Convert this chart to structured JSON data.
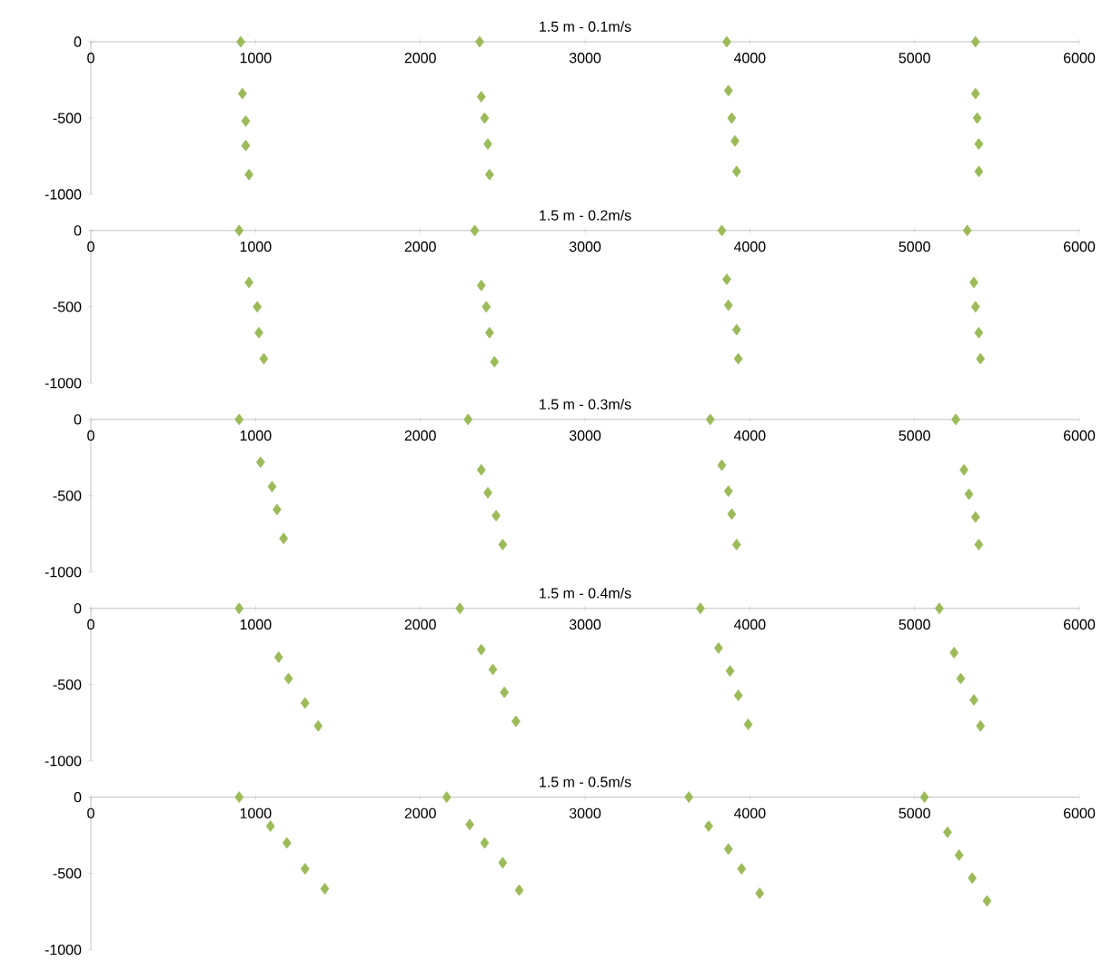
{
  "chart_data": [
    {
      "type": "scatter",
      "title": "1.5 m - 0.1m/s",
      "color": "#9bbb59",
      "marker": "diamond",
      "grid": false,
      "xlim": [
        0,
        6000
      ],
      "ylim": [
        -1000,
        0
      ],
      "xticks": [
        0,
        1000,
        2000,
        3000,
        4000,
        5000,
        6000
      ],
      "yticks": [
        -1000,
        -500,
        0
      ],
      "x": [
        910,
        920,
        940,
        940,
        960,
        2360,
        2370,
        2390,
        2410,
        2420,
        3860,
        3870,
        3890,
        3910,
        3920,
        5370,
        5370,
        5380,
        5390,
        5390
      ],
      "values": [
        0,
        -340,
        -520,
        -680,
        -870,
        0,
        -360,
        -500,
        -670,
        -870,
        0,
        -320,
        -500,
        -650,
        -850,
        0,
        -340,
        -500,
        -670,
        -850
      ]
    },
    {
      "type": "scatter",
      "title": "1.5 m - 0.2m/s",
      "color": "#9bbb59",
      "marker": "diamond",
      "grid": false,
      "xlim": [
        0,
        6000
      ],
      "ylim": [
        -1000,
        0
      ],
      "xticks": [
        0,
        1000,
        2000,
        3000,
        4000,
        5000,
        6000
      ],
      "yticks": [
        -1000,
        -500,
        0
      ],
      "x": [
        900,
        960,
        1010,
        1020,
        1050,
        2330,
        2370,
        2400,
        2420,
        2450,
        3830,
        3860,
        3870,
        3920,
        3930,
        5320,
        5360,
        5370,
        5390,
        5400
      ],
      "values": [
        0,
        -340,
        -500,
        -670,
        -840,
        0,
        -360,
        -500,
        -670,
        -860,
        0,
        -320,
        -490,
        -650,
        -840,
        0,
        -340,
        -500,
        -670,
        -840
      ]
    },
    {
      "type": "scatter",
      "title": "1.5 m - 0.3m/s",
      "color": "#9bbb59",
      "marker": "diamond",
      "grid": false,
      "xlim": [
        0,
        6000
      ],
      "ylim": [
        -1000,
        0
      ],
      "xticks": [
        0,
        1000,
        2000,
        3000,
        4000,
        5000,
        6000
      ],
      "yticks": [
        -1000,
        -500,
        0
      ],
      "x": [
        900,
        1030,
        1100,
        1130,
        1170,
        2290,
        2370,
        2410,
        2460,
        2500,
        3760,
        3830,
        3870,
        3890,
        3920,
        5250,
        5300,
        5330,
        5370,
        5390
      ],
      "values": [
        0,
        -280,
        -440,
        -590,
        -780,
        0,
        -330,
        -480,
        -630,
        -820,
        0,
        -300,
        -470,
        -620,
        -820,
        0,
        -330,
        -490,
        -640,
        -820
      ]
    },
    {
      "type": "scatter",
      "title": "1.5 m - 0.4m/s",
      "color": "#9bbb59",
      "marker": "diamond",
      "grid": false,
      "xlim": [
        0,
        6000
      ],
      "ylim": [
        -1000,
        0
      ],
      "xticks": [
        0,
        1000,
        2000,
        3000,
        4000,
        5000,
        6000
      ],
      "yticks": [
        -1000,
        -500,
        0
      ],
      "x": [
        900,
        1140,
        1200,
        1300,
        1380,
        2240,
        2370,
        2440,
        2510,
        2580,
        3700,
        3810,
        3880,
        3930,
        3990,
        5150,
        5240,
        5280,
        5360,
        5400
      ],
      "values": [
        0,
        -320,
        -460,
        -620,
        -770,
        0,
        -270,
        -400,
        -550,
        -740,
        0,
        -260,
        -410,
        -570,
        -760,
        0,
        -290,
        -460,
        -600,
        -770
      ]
    },
    {
      "type": "scatter",
      "title": "1.5 m - 0.5m/s",
      "color": "#9bbb59",
      "marker": "diamond",
      "grid": false,
      "xlim": [
        0,
        6000
      ],
      "ylim": [
        -1000,
        0
      ],
      "xticks": [
        0,
        1000,
        2000,
        3000,
        4000,
        5000,
        6000
      ],
      "yticks": [
        -1000,
        -500,
        0
      ],
      "x": [
        900,
        1090,
        1190,
        1300,
        1420,
        2160,
        2300,
        2390,
        2500,
        2600,
        3630,
        3750,
        3870,
        3950,
        4060,
        5060,
        5200,
        5270,
        5350,
        5440
      ],
      "values": [
        0,
        -190,
        -300,
        -470,
        -600,
        0,
        -180,
        -300,
        -430,
        -610,
        0,
        -190,
        -340,
        -470,
        -630,
        0,
        -230,
        -380,
        -530,
        -680
      ]
    }
  ]
}
